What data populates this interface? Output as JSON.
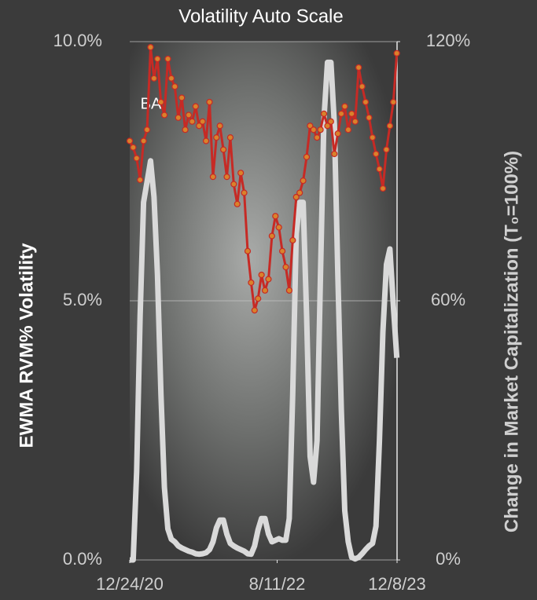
{
  "chart_data": {
    "type": "line",
    "title": "Volatility Auto Scale",
    "y_label": "EWMA RVM% Volatility",
    "y2_label": "Change in Market Capitalization (T₀=100%)",
    "annotation": "BA",
    "x": [
      "12/24/20",
      "1/7/21",
      "1/21/21",
      "2/4/21",
      "2/18/21",
      "3/4/21",
      "3/18/21",
      "4/1/21",
      "4/15/21",
      "4/29/21",
      "5/13/21",
      "5/27/21",
      "6/10/21",
      "6/24/21",
      "7/8/21",
      "7/22/21",
      "8/5/21",
      "8/19/21",
      "9/2/21",
      "9/16/21",
      "9/30/21",
      "10/14/21",
      "10/28/21",
      "11/11/21",
      "11/25/21",
      "12/9/21",
      "12/23/21",
      "1/6/22",
      "1/20/22",
      "2/3/22",
      "2/17/22",
      "3/3/22",
      "3/17/22",
      "3/31/22",
      "4/14/22",
      "4/28/22",
      "5/12/22",
      "5/26/22",
      "6/9/22",
      "6/23/22",
      "7/7/22",
      "7/21/22",
      "8/4/22",
      "8/18/22",
      "9/1/22",
      "9/15/22",
      "9/29/22",
      "10/13/22",
      "10/27/22",
      "11/10/22",
      "11/24/22",
      "12/8/22",
      "12/22/22",
      "1/5/23",
      "1/19/23",
      "2/2/23",
      "2/16/23",
      "3/2/23",
      "3/16/23",
      "3/30/23",
      "4/13/23",
      "4/27/23",
      "5/11/23",
      "5/25/23",
      "6/8/23",
      "6/22/23",
      "7/6/23",
      "7/20/23",
      "8/3/23",
      "8/17/23",
      "8/31/23",
      "9/14/23",
      "9/28/23",
      "10/12/23",
      "10/26/23",
      "11/9/23",
      "11/23/23",
      "12/7/23"
    ],
    "xlim": [
      "12/24/20",
      "12/8/23"
    ],
    "xticks": [
      "12/24/20",
      "8/11/22",
      "12/8/23"
    ],
    "ylim": [
      0,
      10
    ],
    "yticks": [
      {
        "value": 0,
        "label": "0.0%"
      },
      {
        "value": 5,
        "label": "5.0%"
      },
      {
        "value": 10,
        "label": "10.0%"
      }
    ],
    "y2lim": [
      0,
      120
    ],
    "y2ticks": [
      {
        "value": 0,
        "label": "0%"
      },
      {
        "value": 60,
        "label": "60%"
      },
      {
        "value": 120,
        "label": "120%"
      }
    ],
    "grid": true,
    "series": [
      {
        "color": "#d9d9d9",
        "values": [
          0,
          0,
          1.7,
          4.7,
          6.9,
          7.3,
          7.7,
          7.0,
          5.5,
          3.2,
          1.4,
          0.6,
          0.4,
          0.35,
          0.27,
          0.23,
          0.2,
          0.17,
          0.15,
          0.12,
          0.11,
          0.12,
          0.14,
          0.2,
          0.35,
          0.62,
          0.77,
          0.77,
          0.5,
          0.32,
          0.27,
          0.23,
          0.2,
          0.17,
          0.12,
          0.11,
          0.27,
          0.58,
          0.8,
          0.8,
          0.5,
          0.35,
          0.38,
          0.41,
          0.38,
          0.38,
          0.8,
          3.2,
          6.3,
          6.9,
          6.9,
          4.7,
          2.0,
          1.5,
          2.3,
          5.5,
          8.5,
          9.6,
          9.6,
          8.4,
          5.5,
          2.9,
          0.95,
          0.35,
          0.05,
          0.02,
          0.05,
          0.12,
          0.2,
          0.27,
          0.32,
          0.65,
          2.3,
          4.4,
          5.7,
          6.0,
          4.9,
          3.9
        ]
      },
      {
        "color": "#c62a25",
        "marker_color": "#d9822b",
        "axis": "y2",
        "values": [
          97,
          95.5,
          93,
          88,
          97,
          99.6,
          118.7,
          111.5,
          116,
          106,
          103,
          116,
          111.5,
          109.6,
          102.4,
          107,
          99.6,
          103,
          101.5,
          105,
          100.5,
          101.5,
          97,
          106,
          88.7,
          97.8,
          100.5,
          95,
          88.7,
          97.8,
          87,
          82.4,
          89.6,
          85,
          71.5,
          64.2,
          57.8,
          60.5,
          66,
          62.4,
          65,
          75,
          79.6,
          77,
          71.5,
          67.8,
          62.4,
          74,
          84,
          85,
          87.8,
          93.3,
          100.5,
          99.6,
          97.8,
          99.6,
          103.3,
          100.5,
          101.5,
          94,
          98.7,
          103.3,
          105,
          99.6,
          103.3,
          101.5,
          114,
          109.6,
          106,
          102.4,
          97.8,
          94,
          90.5,
          86,
          95,
          100.5,
          106,
          117.3
        ]
      }
    ]
  }
}
